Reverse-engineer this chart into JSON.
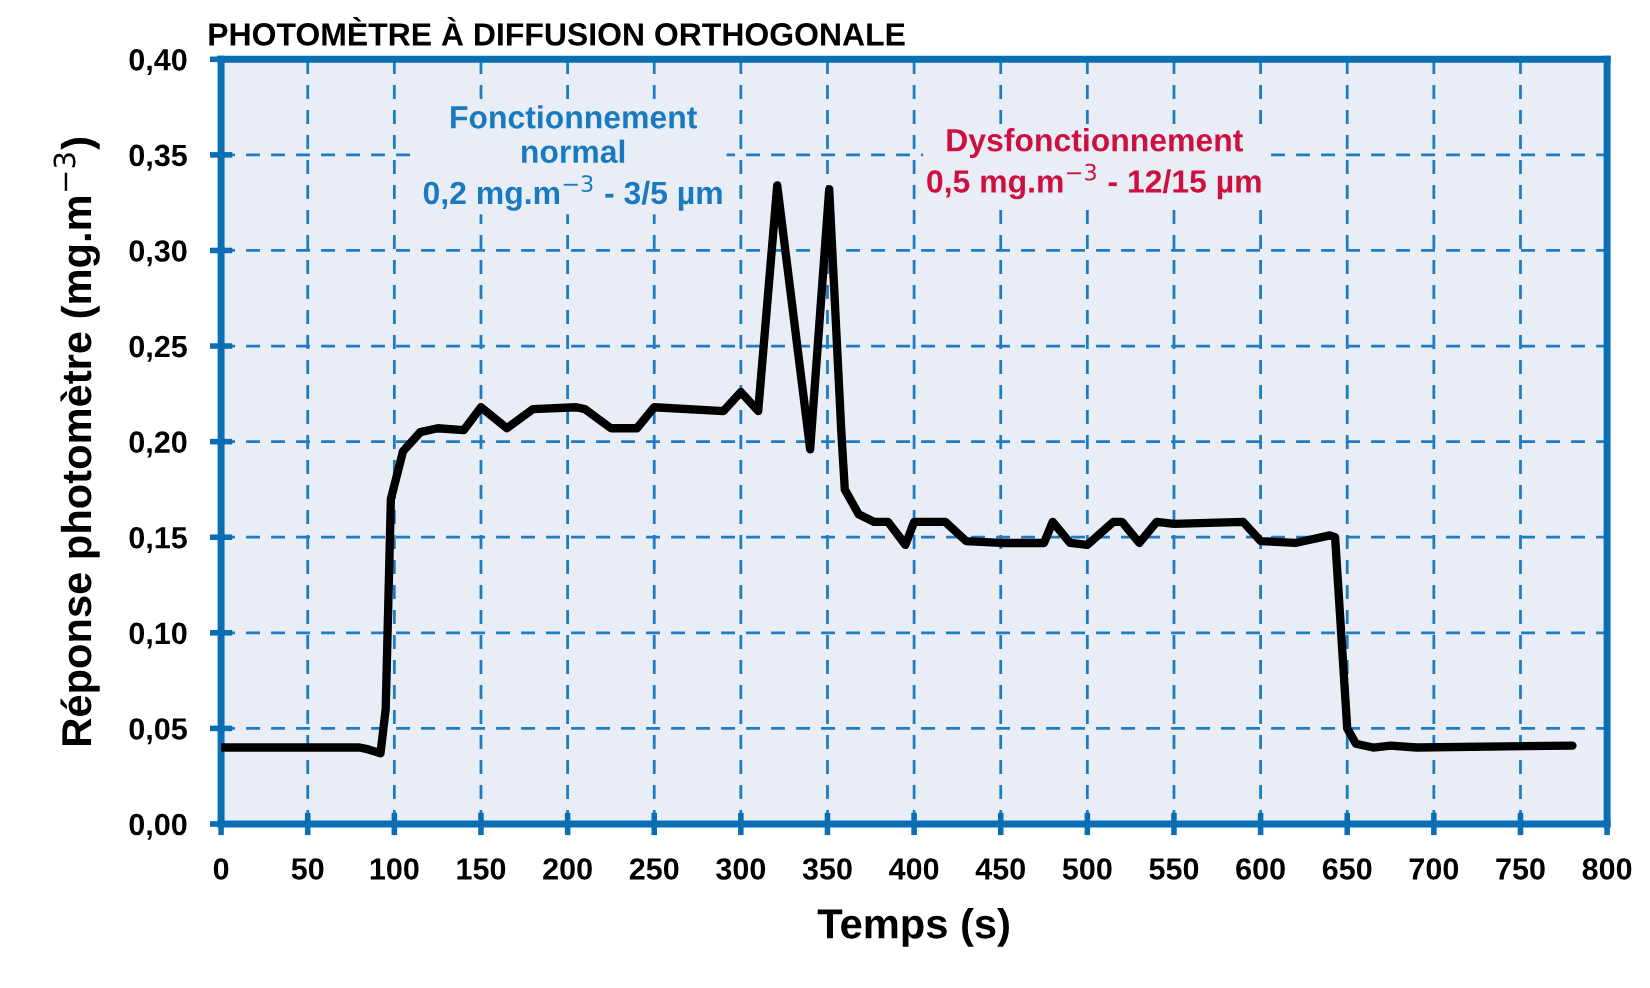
{
  "chart_data": {
    "type": "line",
    "title": "PHOTOMÈTRE À DIFFUSION ORTHOGONALE",
    "xlabel": "Temps (s)",
    "ylabel": "Réponse photomètre (mg.m$^{−3}$)",
    "annotations": [
      "Fonctionnement\nnormal\n0,2 mg.m$^{−3}$ - 3/5 µm",
      "Dysfonctionnement\n0,5 mg.m$^{−3}$ - 12/15 µm"
    ],
    "xlim": [
      0,
      800
    ],
    "xticks": [
      0,
      50,
      100,
      150,
      200,
      250,
      300,
      350,
      400,
      450,
      500,
      550,
      600,
      650,
      700,
      750,
      800
    ],
    "ylim": [
      0,
      0.4
    ],
    "yticks": [
      {
        "value": 0,
        "label": "0,00"
      },
      {
        "value": 0.05,
        "label": "0,05"
      },
      {
        "value": 0.1,
        "label": "0,10"
      },
      {
        "value": 0.15,
        "label": "0,15"
      },
      {
        "value": 0.2,
        "label": "0,20"
      },
      {
        "value": 0.25,
        "label": "0,25"
      },
      {
        "value": 0.3,
        "label": "0,30"
      },
      {
        "value": 0.35,
        "label": "0,35"
      },
      {
        "value": 0.4,
        "label": "0,40"
      }
    ],
    "grid": true,
    "legend": false,
    "marker": "none",
    "line_style": "solid",
    "series": [
      {
        "color": "#000000",
        "x": [
          0,
          80,
          85,
          92,
          95,
          98,
          105,
          115,
          125,
          140,
          150,
          165,
          180,
          205,
          210,
          225,
          240,
          250,
          290,
          300,
          310,
          321,
          340,
          351,
          358,
          360,
          368,
          377,
          385,
          395,
          400,
          418,
          430,
          450,
          475,
          480,
          490,
          500,
          515,
          520,
          530,
          540,
          550,
          590,
          600,
          620,
          640,
          643,
          650,
          655,
          665,
          675,
          690,
          780
        ],
        "values": [
          0.04,
          0.04,
          0.039,
          0.037,
          0.06,
          0.17,
          0.195,
          0.205,
          0.207,
          0.206,
          0.218,
          0.207,
          0.217,
          0.218,
          0.217,
          0.207,
          0.207,
          0.218,
          0.216,
          0.226,
          0.216,
          0.334,
          0.196,
          0.332,
          0.205,
          0.175,
          0.162,
          0.158,
          0.158,
          0.146,
          0.158,
          0.158,
          0.148,
          0.147,
          0.147,
          0.158,
          0.147,
          0.146,
          0.158,
          0.158,
          0.147,
          0.158,
          0.157,
          0.158,
          0.148,
          0.147,
          0.151,
          0.15,
          0.05,
          0.042,
          0.04,
          0.041,
          0.04,
          0.041
        ]
      }
    ]
  }
}
